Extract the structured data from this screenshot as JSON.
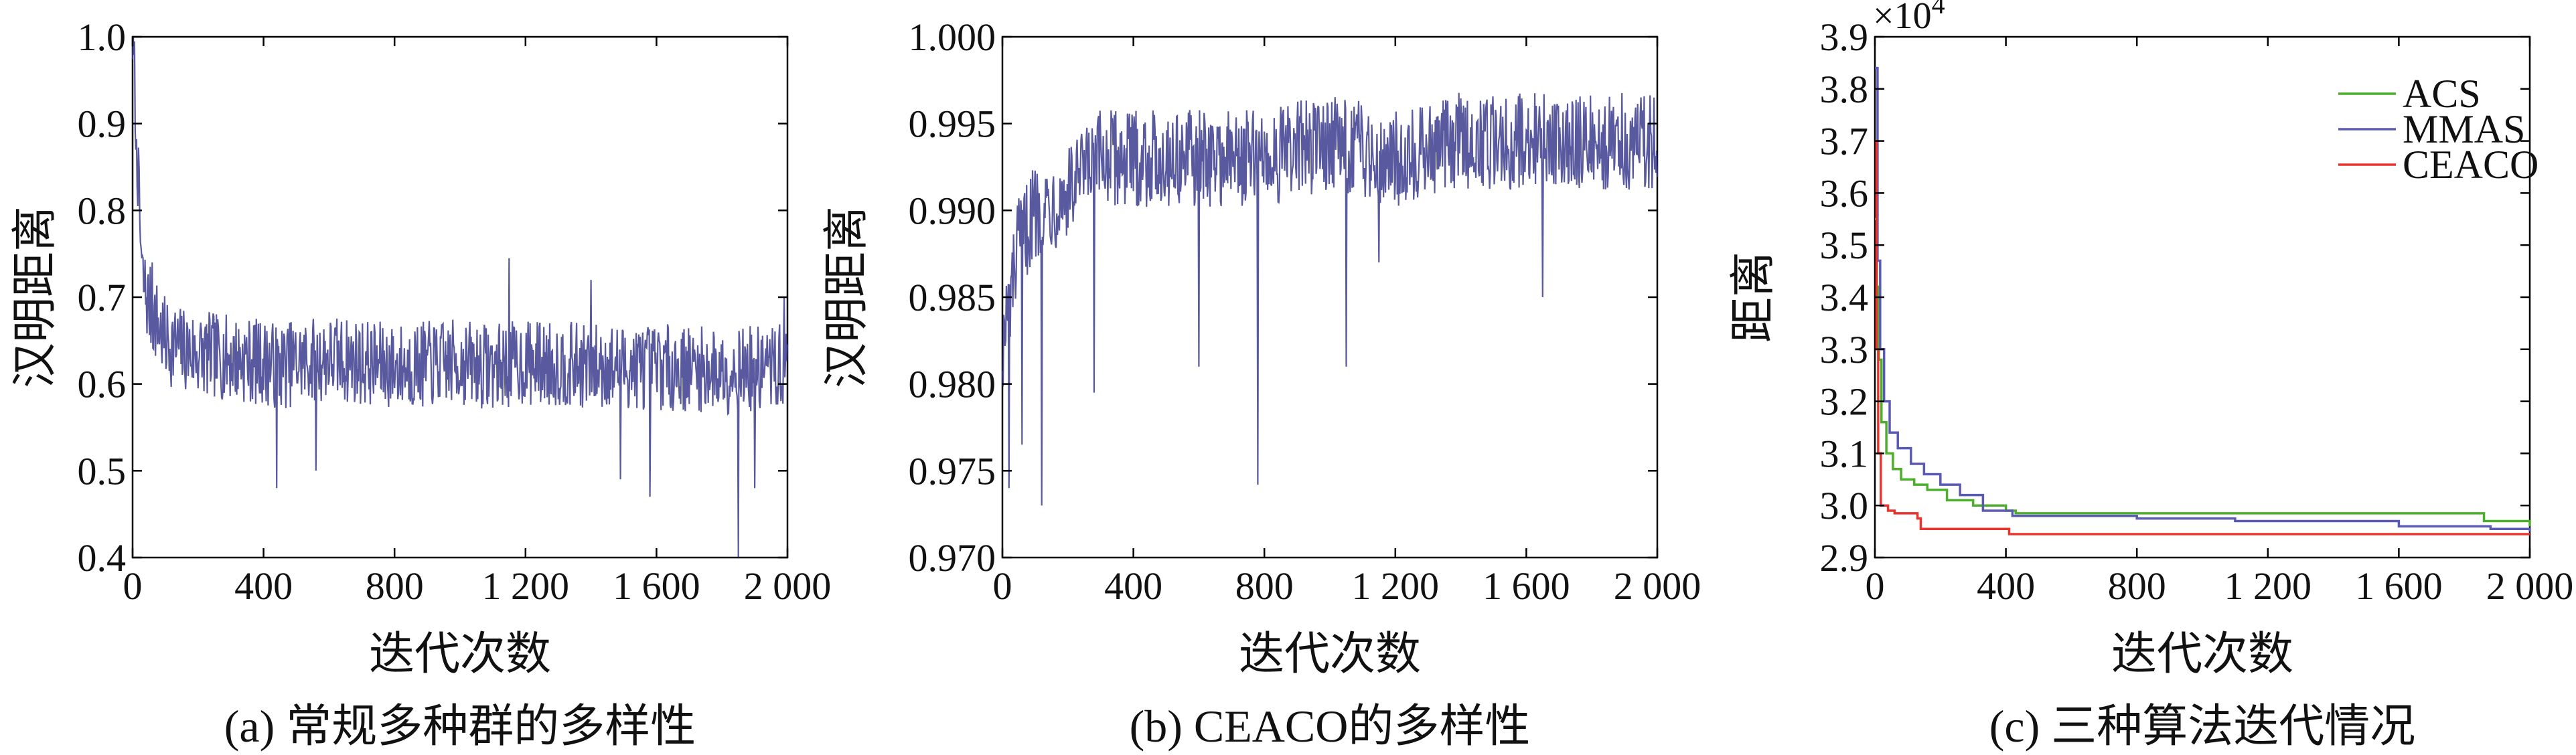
{
  "colors": {
    "diversity_line": "#3c3c8e",
    "acs": "#4caf2c",
    "mmas": "#5a5ab4",
    "ceaco": "#e8342c"
  },
  "chart_data": [
    {
      "type": "line",
      "caption": "(a) 常规多种群的多样性",
      "xlabel": "迭代次数",
      "ylabel": "汉明距离",
      "xlim": [
        0,
        2000
      ],
      "ylim": [
        0.4,
        1.0
      ],
      "x_ticks": [
        0,
        400,
        800,
        1200,
        1600,
        2000
      ],
      "x_tick_labels": [
        "0",
        "400",
        "800",
        "1 200",
        "1 600",
        "2 000"
      ],
      "y_ticks": [
        0.4,
        0.5,
        0.6,
        0.7,
        0.8,
        0.9,
        1.0
      ],
      "y_tick_labels": [
        "0.4",
        "0.5",
        "0.6",
        "0.7",
        "0.8",
        "0.9",
        "1.0"
      ],
      "grid": false,
      "series": [
        {
          "color_key": "diversity_line",
          "x": [
            0,
            10,
            20,
            30,
            50,
            75,
            100,
            150,
            200,
            300,
            400,
            450,
            500,
            600,
            800,
            1000,
            1100,
            1200,
            1400,
            1600,
            1800,
            2000
          ],
          "y": [
            1.0,
            0.92,
            0.8,
            0.72,
            0.69,
            0.67,
            0.65,
            0.64,
            0.635,
            0.63,
            0.625,
            0.62,
            0.625,
            0.63,
            0.62,
            0.625,
            0.62,
            0.625,
            0.62,
            0.62,
            0.615,
            0.62
          ],
          "noise_amplitude": 0.05,
          "spikes": [
            [
              10,
              0.87
            ],
            [
              60,
              0.74
            ],
            [
              440,
              0.48
            ],
            [
              560,
              0.5
            ],
            [
              1150,
              0.745
            ],
            [
              1400,
              0.72
            ],
            [
              1490,
              0.49
            ],
            [
              1580,
              0.47
            ],
            [
              1850,
              0.4
            ],
            [
              1900,
              0.48
            ],
            [
              1990,
              0.7
            ]
          ]
        }
      ]
    },
    {
      "type": "line",
      "caption": "(b) CEACO的多样性",
      "xlabel": "迭代次数",
      "ylabel": "汉明距离",
      "xlim": [
        0,
        2000
      ],
      "ylim": [
        0.97,
        1.0
      ],
      "x_ticks": [
        0,
        400,
        800,
        1200,
        1600,
        2000
      ],
      "x_tick_labels": [
        "0",
        "400",
        "800",
        "1 200",
        "1 600",
        "2 000"
      ],
      "y_ticks": [
        0.97,
        0.975,
        0.98,
        0.985,
        0.99,
        0.995,
        1.0
      ],
      "y_tick_labels": [
        "0.970",
        "0.975",
        "0.980",
        "0.985",
        "0.990",
        "0.995",
        "1.000"
      ],
      "grid": false,
      "series": [
        {
          "color_key": "diversity_line",
          "x": [
            0,
            50,
            100,
            200,
            300,
            400,
            600,
            800,
            1000,
            1200,
            1400,
            1600,
            1800,
            2000
          ],
          "y": [
            0.982,
            0.988,
            0.99,
            0.991,
            0.993,
            0.993,
            0.993,
            0.993,
            0.994,
            0.993,
            0.994,
            0.994,
            0.994,
            0.994
          ],
          "noise_amplitude": 0.0028,
          "spikes": [
            [
              20,
              0.974
            ],
            [
              60,
              0.9765
            ],
            [
              120,
              0.973
            ],
            [
              280,
              0.9795
            ],
            [
              600,
              0.981
            ],
            [
              780,
              0.9742
            ],
            [
              1050,
              0.981
            ],
            [
              1150,
              0.987
            ],
            [
              1650,
              0.985
            ],
            [
              1990,
              0.9965
            ]
          ]
        }
      ]
    },
    {
      "type": "line",
      "caption": "(c) 三种算法迭代情况",
      "xlabel": "迭代次数",
      "ylabel": "距离",
      "y_scale_label": "×10",
      "y_scale_exp": "4",
      "xlim": [
        0,
        2000
      ],
      "ylim": [
        2.9,
        3.9
      ],
      "x_ticks": [
        0,
        400,
        800,
        1200,
        1600,
        2000
      ],
      "x_tick_labels": [
        "0",
        "400",
        "800",
        "1 200",
        "1 600",
        "2 000"
      ],
      "y_ticks": [
        2.9,
        3.0,
        3.1,
        3.2,
        3.3,
        3.4,
        3.5,
        3.6,
        3.7,
        3.8,
        3.9
      ],
      "y_tick_labels": [
        "2.9",
        "3.0",
        "3.1",
        "3.2",
        "3.3",
        "3.4",
        "3.5",
        "3.6",
        "3.7",
        "3.8",
        "3.9"
      ],
      "legend_position": "top-right",
      "grid": false,
      "series": [
        {
          "name": "ACS",
          "color_key": "acs",
          "points": [
            [
              0,
              3.55
            ],
            [
              6,
              3.42
            ],
            [
              12,
              3.28
            ],
            [
              20,
              3.16
            ],
            [
              35,
              3.1
            ],
            [
              55,
              3.07
            ],
            [
              80,
              3.05
            ],
            [
              120,
              3.04
            ],
            [
              160,
              3.03
            ],
            [
              220,
              3.01
            ],
            [
              300,
              3.0
            ],
            [
              400,
              2.99
            ],
            [
              430,
              2.985
            ],
            [
              1840,
              2.985
            ],
            [
              1860,
              2.97
            ],
            [
              2000,
              2.96
            ]
          ]
        },
        {
          "name": "MMAS",
          "color_key": "mmas",
          "points": [
            [
              0,
              3.84
            ],
            [
              8,
              3.47
            ],
            [
              16,
              3.3
            ],
            [
              28,
              3.2
            ],
            [
              45,
              3.14
            ],
            [
              70,
              3.11
            ],
            [
              110,
              3.08
            ],
            [
              150,
              3.06
            ],
            [
              200,
              3.04
            ],
            [
              260,
              3.02
            ],
            [
              330,
              2.99
            ],
            [
              420,
              2.98
            ],
            [
              800,
              2.975
            ],
            [
              1100,
              2.97
            ],
            [
              1600,
              2.96
            ],
            [
              1880,
              2.955
            ],
            [
              2000,
              2.95
            ]
          ]
        },
        {
          "name": "CEACO",
          "color_key": "ceaco",
          "points": [
            [
              0,
              3.7
            ],
            [
              5,
              3.3
            ],
            [
              10,
              3.1
            ],
            [
              18,
              3.0
            ],
            [
              40,
              2.99
            ],
            [
              60,
              2.985
            ],
            [
              130,
              2.975
            ],
            [
              140,
              2.955
            ],
            [
              400,
              2.955
            ],
            [
              410,
              2.945
            ],
            [
              2000,
              2.945
            ]
          ]
        }
      ]
    }
  ]
}
